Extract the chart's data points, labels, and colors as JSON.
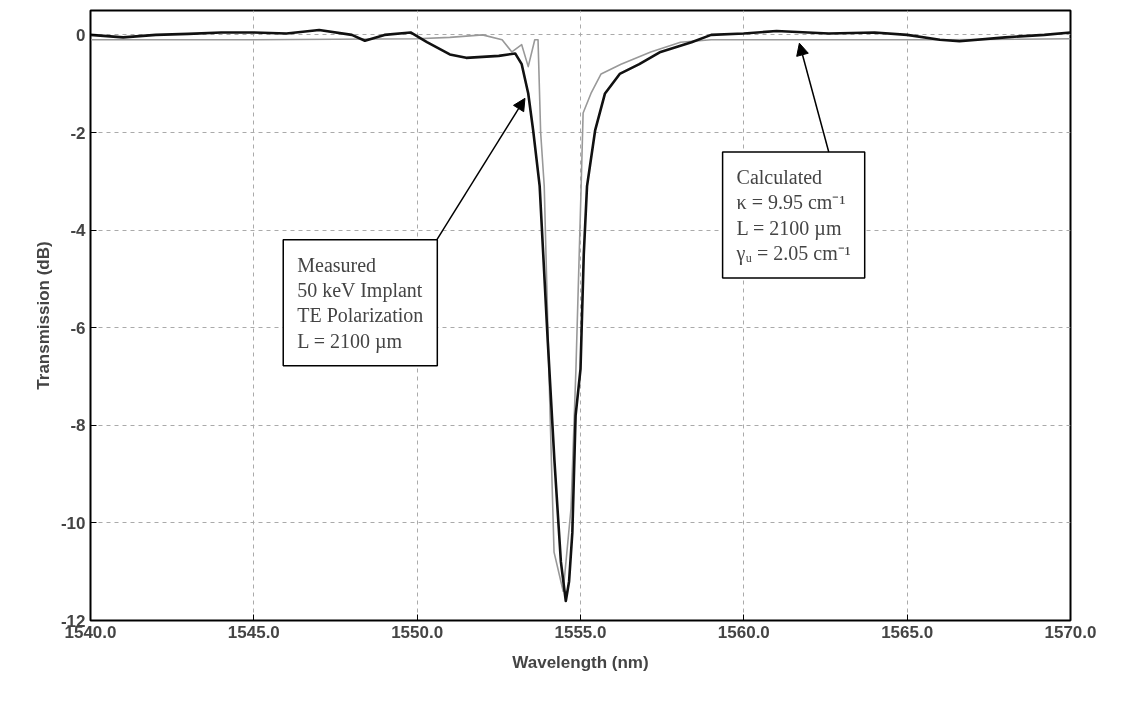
{
  "chart_data": {
    "type": "line",
    "xlabel": "Wavelength (nm)",
    "ylabel": "Transmission (dB)",
    "xlim": [
      1540,
      1570
    ],
    "ylim": [
      -12,
      0.5
    ],
    "xticks": [
      {
        "value": 1540,
        "label": "1540.0"
      },
      {
        "value": 1545,
        "label": "1545.0"
      },
      {
        "value": 1550,
        "label": "1550.0"
      },
      {
        "value": 1555,
        "label": "1555.0"
      },
      {
        "value": 1560,
        "label": "1560.0"
      },
      {
        "value": 1565,
        "label": "1565.0"
      },
      {
        "value": 1570,
        "label": "1570.0"
      }
    ],
    "yticks": [
      -12,
      -10,
      -8,
      -6,
      -4,
      -2,
      0
    ],
    "grid": true,
    "marker": "none",
    "line_style": "solid",
    "series": [
      {
        "color": "#999999",
        "x": [
          1540.0,
          1545.0,
          1550.0,
          1551.0,
          1552.0,
          1552.6,
          1552.9,
          1553.2,
          1553.4,
          1553.6,
          1553.7,
          1553.78,
          1553.89,
          1554.07,
          1554.19,
          1554.47,
          1554.71,
          1554.86,
          1555.02,
          1555.08,
          1555.32,
          1555.63,
          1556.24,
          1557.15,
          1558.06,
          1559.0,
          1562.0,
          1566.0,
          1570.0
        ],
        "values": [
          -0.1,
          -0.1,
          -0.08,
          -0.05,
          0.0,
          -0.1,
          -0.35,
          -0.2,
          -0.65,
          -0.1,
          -0.1,
          -2.0,
          -3.1,
          -7.8,
          -10.6,
          -11.4,
          -9.7,
          -6.85,
          -3.1,
          -1.6,
          -1.2,
          -0.8,
          -0.6,
          -0.35,
          -0.15,
          -0.1,
          -0.1,
          -0.1,
          -0.08
        ]
      },
      {
        "color": "#111111",
        "x": [
          1540.0,
          1541.0,
          1542.0,
          1543.0,
          1544.0,
          1545.0,
          1546.0,
          1547.0,
          1548.0,
          1548.4,
          1549.0,
          1549.8,
          1550.3,
          1551.0,
          1551.5,
          1552.5,
          1553.0,
          1553.2,
          1553.4,
          1553.55,
          1553.75,
          1554.0,
          1554.2,
          1554.4,
          1554.55,
          1554.65,
          1554.75,
          1554.85,
          1555.0,
          1555.1,
          1555.2,
          1555.45,
          1555.75,
          1556.2,
          1556.8,
          1557.45,
          1558.4,
          1559.0,
          1560.0,
          1561.0,
          1562.6,
          1564.0,
          1565.0,
          1566.0,
          1566.6,
          1568.0,
          1569.2,
          1570.0
        ],
        "values": [
          0.0,
          -0.05,
          0.0,
          0.02,
          0.05,
          0.05,
          0.03,
          0.1,
          0.0,
          -0.12,
          0.0,
          0.05,
          -0.15,
          -0.4,
          -0.47,
          -0.43,
          -0.38,
          -0.6,
          -1.2,
          -1.95,
          -3.1,
          -6.3,
          -8.7,
          -10.8,
          -11.6,
          -11.2,
          -10.2,
          -7.8,
          -6.85,
          -4.5,
          -3.1,
          -1.95,
          -1.2,
          -0.8,
          -0.6,
          -0.35,
          -0.15,
          0.0,
          0.03,
          0.08,
          0.03,
          0.05,
          0.0,
          -0.1,
          -0.13,
          -0.05,
          0.0,
          0.05
        ]
      }
    ],
    "annotations": [
      {
        "text": "Measured\n50 keV Implant\nTE Polarization\nL = 2100 µm",
        "x": 1553.3,
        "y": -1.3
      },
      {
        "text": "Calculated\nκ = 9.95 cm⁻¹\nL = 2100 µm\nγᵤ = 2.05 cm⁻¹",
        "x": 1561.7,
        "y": -0.17
      }
    ]
  }
}
